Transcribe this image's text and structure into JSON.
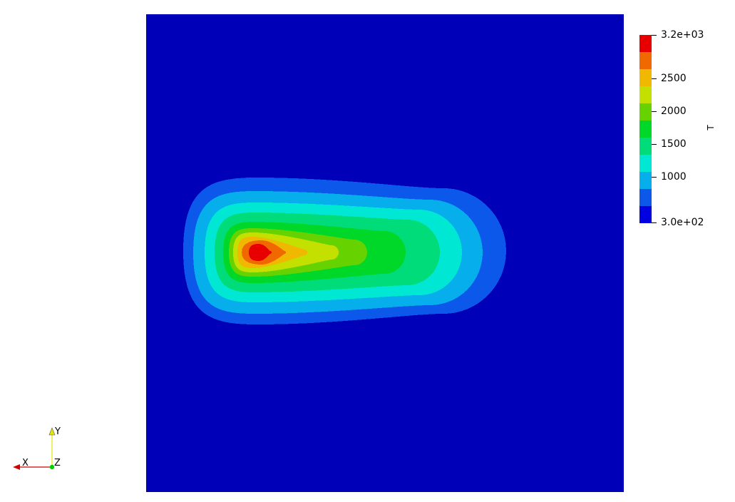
{
  "scalar_bar": {
    "title": "T",
    "max_label": "3.2e+03",
    "min_label": "3.0e+02",
    "tick_labels": [
      "2500",
      "2000",
      "1500",
      "1000"
    ],
    "range": [
      300,
      3200
    ],
    "num_colors": 11,
    "colors": [
      "#0000e0",
      "#0c58ea",
      "#06aeeb",
      "#00e7d3",
      "#00dc7a",
      "#00d829",
      "#66d200",
      "#c3e000",
      "#f0b800",
      "#f06800",
      "#e80000"
    ]
  },
  "field": {
    "background_color": "#0000b8"
  },
  "axes": {
    "x_label": "X",
    "y_label": "Y",
    "z_label": "Z"
  }
}
